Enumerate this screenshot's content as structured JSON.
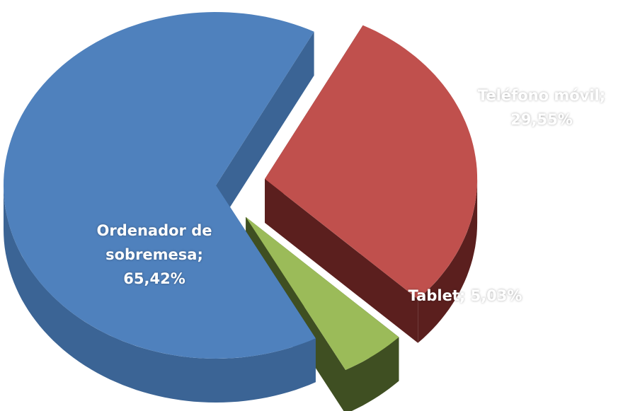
{
  "chart_data": {
    "type": "pie",
    "categories": [
      "Ordenador de sobremesa",
      "Teléfono móvil",
      "Tablet"
    ],
    "values": [
      65.42,
      29.55,
      5.03
    ],
    "value_labels": [
      "65,42%",
      "29,55%",
      "5,03%"
    ],
    "label_separator": "; ",
    "colors": [
      "#4f81bd",
      "#c0504d",
      "#9bbb59"
    ],
    "side_colors": [
      "#3b6495",
      "#5b1f1e",
      "#3f4f22"
    ],
    "exploded": [
      false,
      true,
      true
    ]
  }
}
